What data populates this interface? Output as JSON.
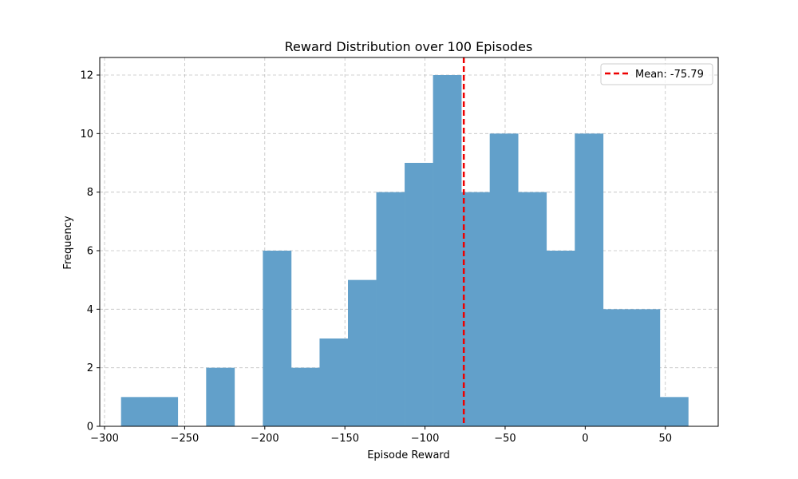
{
  "chart_data": {
    "type": "bar",
    "title": "Reward Distribution over 100 Episodes",
    "xlabel": "Episode Reward",
    "ylabel": "Frequency",
    "xlim": [
      -303,
      83
    ],
    "ylim": [
      0,
      12.6
    ],
    "x_ticks": [
      -300,
      -250,
      -200,
      -150,
      -100,
      -50,
      0,
      50
    ],
    "x_tick_labels": [
      "−300",
      "−250",
      "−200",
      "−150",
      "−100",
      "−50",
      "0",
      "50"
    ],
    "y_ticks": [
      0,
      2,
      4,
      6,
      8,
      10,
      12
    ],
    "y_tick_labels": [
      "0",
      "2",
      "4",
      "6",
      "8",
      "10",
      "12"
    ],
    "grid": true,
    "bin_edges": [
      -289.7,
      -272.0,
      -254.3,
      -236.6,
      -218.9,
      -201.2,
      -183.5,
      -165.8,
      -148.1,
      -130.4,
      -112.7,
      -95.0,
      -77.3,
      -59.6,
      -41.9,
      -24.2,
      -6.5,
      11.2,
      28.9,
      46.6,
      64.3
    ],
    "counts": [
      1,
      1,
      0,
      2,
      0,
      6,
      2,
      3,
      5,
      8,
      9,
      12,
      8,
      10,
      8,
      6,
      10,
      4,
      4,
      1
    ],
    "bar_color": "#62a0ca",
    "mean_line": {
      "value": -75.79,
      "label": "Mean: -75.79",
      "color": "#ee0000"
    },
    "legend": {
      "position": "top-right"
    }
  }
}
